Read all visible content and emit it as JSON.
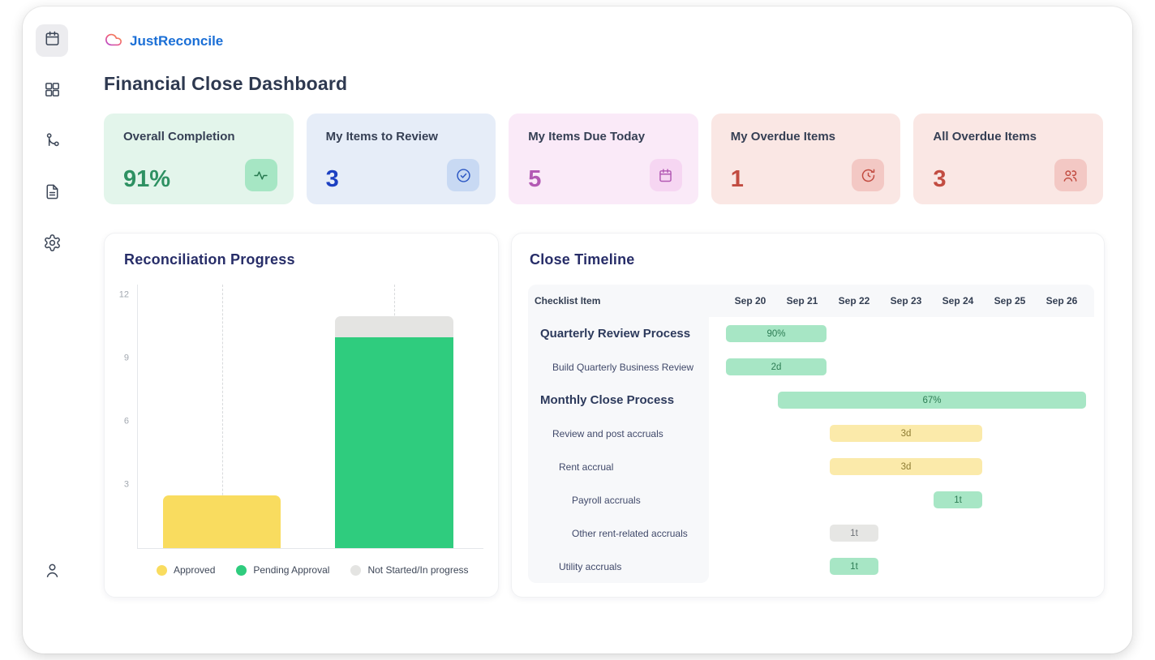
{
  "app": {
    "logo_text": "JustReconcile",
    "page_title": "Financial Close Dashboard"
  },
  "sidebar": {
    "items": [
      {
        "icon": "calendar",
        "active": true
      },
      {
        "icon": "grid",
        "active": false
      },
      {
        "icon": "workflow",
        "active": false
      },
      {
        "icon": "document",
        "active": false
      },
      {
        "icon": "settings",
        "active": false
      },
      {
        "icon": "user",
        "active": false
      }
    ]
  },
  "stats": {
    "cards": [
      {
        "label": "Overall Completion",
        "value": "91%",
        "icon": "activity-icon",
        "accent": "#2E9162",
        "background": "#E3F5EB"
      },
      {
        "label": "My Items to Review",
        "value": "3",
        "icon": "check-circle-icon",
        "accent": "#1C40C2",
        "background": "#E6EDF8"
      },
      {
        "label": "My Items Due Today",
        "value": "5",
        "icon": "calendar-icon",
        "accent": "#B35AB4",
        "background": "#FAEAF8"
      },
      {
        "label": "My Overdue Items",
        "value": "1",
        "icon": "history-clock-icon",
        "accent": "#C24C41",
        "background": "#FAE7E4"
      },
      {
        "label": "All Overdue Items",
        "value": "3",
        "icon": "users-icon",
        "accent": "#C24C41",
        "background": "#FAE7E5"
      }
    ]
  },
  "reconciliation": {
    "title": "Reconciliation Progress",
    "chart_data": {
      "type": "bar",
      "stacked": true,
      "categories": [
        "",
        ""
      ],
      "series": [
        {
          "name": "Approved",
          "color": "#F9DC5F",
          "values": [
            2.5,
            0
          ]
        },
        {
          "name": "Pending Approval",
          "color": "#2FCC7E",
          "values": [
            0,
            10
          ]
        },
        {
          "name": "Not Started/In progress",
          "color": "#E4E4E2",
          "values": [
            0,
            1
          ]
        }
      ],
      "yticks": [
        3,
        6,
        9,
        12
      ],
      "ylim": [
        0,
        12.7
      ],
      "grid": "dashed-vertical-per-bar",
      "legend_position": "bottom"
    }
  },
  "timeline": {
    "title": "Close Timeline",
    "chart_data": {
      "type": "gantt",
      "header_label": "Checklist Item",
      "dates": [
        "Sep 20",
        "Sep 21",
        "Sep 22",
        "Sep 23",
        "Sep 24",
        "Sep 25",
        "Sep 26"
      ],
      "rows": [
        {
          "label": "Quarterly Review Process",
          "level": 0,
          "bar": {
            "label": "90%",
            "color": "green",
            "start": 0,
            "end": 1
          }
        },
        {
          "label": "Build Quarterly Business Review",
          "level": 1,
          "bar": {
            "label": "2d",
            "color": "green",
            "start": 0,
            "end": 1
          }
        },
        {
          "label": "Monthly Close Process",
          "level": 0,
          "bar": {
            "label": "67%",
            "color": "green",
            "start": 1,
            "end": 6
          }
        },
        {
          "label": "Review and post accruals",
          "level": 1,
          "bar": {
            "label": "3d",
            "color": "yellow",
            "start": 2,
            "end": 4
          }
        },
        {
          "label": "Rent accrual",
          "level": 2,
          "bar": {
            "label": "3d",
            "color": "yellow",
            "start": 2,
            "end": 4
          }
        },
        {
          "label": "Payroll accruals",
          "level": 3,
          "bar": {
            "label": "1t",
            "color": "green",
            "start": 4,
            "end": 4
          }
        },
        {
          "label": "Other rent-related accruals",
          "level": 3,
          "bar": {
            "label": "1t",
            "color": "gray",
            "start": 2,
            "end": 2
          }
        },
        {
          "label": "Utility accruals",
          "level": 2,
          "bar": {
            "label": "1t",
            "color": "green",
            "start": 2,
            "end": 2
          }
        }
      ],
      "bar_colors": {
        "green": "#A7E6C5",
        "yellow": "#FBEAAA",
        "gray": "#E6E6E4"
      }
    }
  }
}
